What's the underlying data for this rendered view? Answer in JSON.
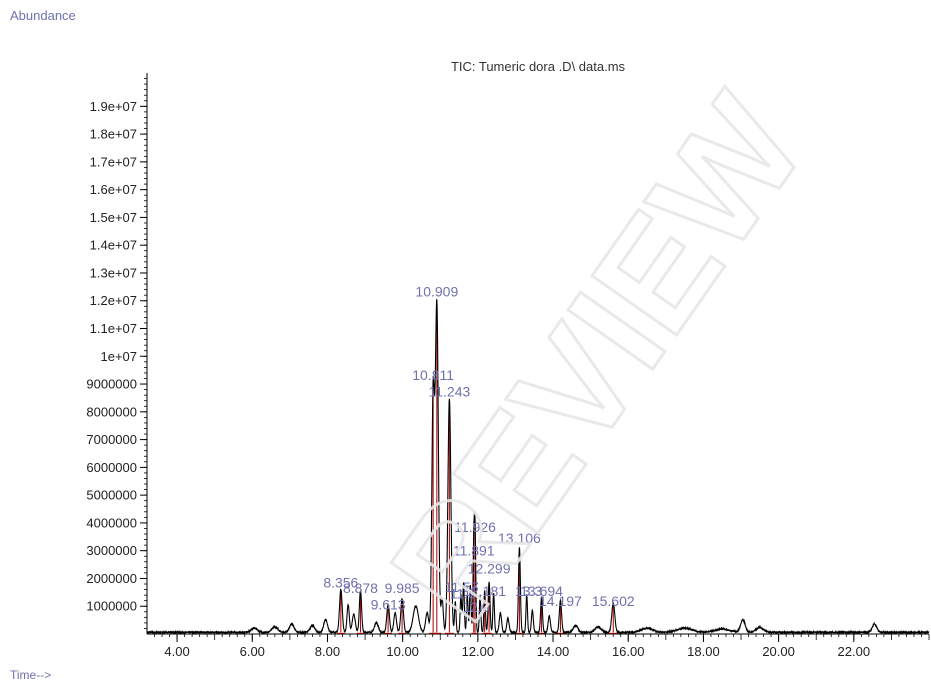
{
  "header": {
    "abundance_label": "Abundance",
    "time_label": "Time-->"
  },
  "chart_data": {
    "type": "line",
    "title": "TIC: Tumeric dora .D\\ data.ms",
    "xlabel": "Time-->",
    "ylabel": "Abundance",
    "xlim": [
      3.2,
      24.0
    ],
    "ylim": [
      0,
      20200000
    ],
    "x_ticks": [
      4,
      6,
      8,
      10,
      12,
      14,
      16,
      18,
      20,
      22
    ],
    "x_tick_labels": [
      "4.00",
      "6.00",
      "8.00",
      "10.00",
      "12.00",
      "14.00",
      "16.00",
      "18.00",
      "20.00",
      "22.00"
    ],
    "y_ticks": [
      1000000,
      2000000,
      3000000,
      4000000,
      5000000,
      6000000,
      7000000,
      8000000,
      9000000,
      10000000,
      11000000,
      12000000,
      13000000,
      14000000,
      15000000,
      16000000,
      17000000,
      18000000,
      19000000
    ],
    "y_tick_labels": [
      "1000000",
      "2000000",
      "3000000",
      "4000000",
      "5000000",
      "6000000",
      "7000000",
      "8000000",
      "9000000",
      "1e+07",
      "1.1e+07",
      "1.2e+07",
      "1.3e+07",
      "1.4e+07",
      "1.5e+07",
      "1.6e+07",
      "1.7e+07",
      "1.8e+07",
      "1.9e+07"
    ],
    "series_color": "#000000",
    "integration_color": "#aa0000",
    "label_color": "#7070b0",
    "baseline": 60000,
    "peaks": [
      {
        "rt": 6.05,
        "h": 150000,
        "w": 0.08
      },
      {
        "rt": 6.6,
        "h": 200000,
        "w": 0.08
      },
      {
        "rt": 7.05,
        "h": 300000,
        "w": 0.06
      },
      {
        "rt": 7.6,
        "h": 250000,
        "w": 0.06
      },
      {
        "rt": 7.95,
        "h": 450000,
        "w": 0.05
      },
      {
        "rt": 8.356,
        "h": 1550000,
        "w": 0.035
      },
      {
        "rt": 8.55,
        "h": 1000000,
        "w": 0.03
      },
      {
        "rt": 8.7,
        "h": 650000,
        "w": 0.04
      },
      {
        "rt": 8.878,
        "h": 1500000,
        "w": 0.03
      },
      {
        "rt": 9.3,
        "h": 350000,
        "w": 0.05
      },
      {
        "rt": 9.613,
        "h": 1000000,
        "w": 0.035
      },
      {
        "rt": 9.8,
        "h": 700000,
        "w": 0.035
      },
      {
        "rt": 9.985,
        "h": 1200000,
        "w": 0.035
      },
      {
        "rt": 10.35,
        "h": 950000,
        "w": 0.07
      },
      {
        "rt": 10.65,
        "h": 700000,
        "w": 0.04
      },
      {
        "rt": 10.811,
        "h": 8500000,
        "w": 0.035
      },
      {
        "rt": 10.909,
        "h": 11800000,
        "w": 0.04
      },
      {
        "rt": 11.05,
        "h": 1200000,
        "w": 0.03
      },
      {
        "rt": 11.243,
        "h": 8400000,
        "w": 0.04
      },
      {
        "rt": 11.4,
        "h": 1100000,
        "w": 0.02
      },
      {
        "rt": 11.55,
        "h": 1350000,
        "w": 0.02
      },
      {
        "rt": 11.62,
        "h": 1800000,
        "w": 0.02
      },
      {
        "rt": 11.72,
        "h": 1350000,
        "w": 0.02
      },
      {
        "rt": 11.8,
        "h": 1700000,
        "w": 0.02
      },
      {
        "rt": 11.891,
        "h": 2900000,
        "w": 0.02
      },
      {
        "rt": 11.926,
        "h": 3400000,
        "w": 0.02
      },
      {
        "rt": 12.06,
        "h": 1300000,
        "w": 0.02
      },
      {
        "rt": 12.181,
        "h": 1500000,
        "w": 0.02
      },
      {
        "rt": 12.299,
        "h": 1800000,
        "w": 0.025
      },
      {
        "rt": 12.42,
        "h": 1400000,
        "w": 0.02
      },
      {
        "rt": 12.6,
        "h": 700000,
        "w": 0.03
      },
      {
        "rt": 12.8,
        "h": 500000,
        "w": 0.03
      },
      {
        "rt": 13.106,
        "h": 3050000,
        "w": 0.025
      },
      {
        "rt": 13.3,
        "h": 1350000,
        "w": 0.02
      },
      {
        "rt": 13.45,
        "h": 800000,
        "w": 0.025
      },
      {
        "rt": 13.694,
        "h": 1250000,
        "w": 0.025
      },
      {
        "rt": 13.9,
        "h": 600000,
        "w": 0.03
      },
      {
        "rt": 14.197,
        "h": 1150000,
        "w": 0.03
      },
      {
        "rt": 14.6,
        "h": 250000,
        "w": 0.06
      },
      {
        "rt": 15.2,
        "h": 200000,
        "w": 0.08
      },
      {
        "rt": 15.602,
        "h": 1050000,
        "w": 0.04
      },
      {
        "rt": 16.5,
        "h": 150000,
        "w": 0.15
      },
      {
        "rt": 17.5,
        "h": 150000,
        "w": 0.2
      },
      {
        "rt": 18.5,
        "h": 120000,
        "w": 0.2
      },
      {
        "rt": 19.05,
        "h": 450000,
        "w": 0.06
      },
      {
        "rt": 19.5,
        "h": 180000,
        "w": 0.1
      },
      {
        "rt": 22.55,
        "h": 300000,
        "w": 0.06
      }
    ],
    "integrated_peaks": [
      8.356,
      8.878,
      9.613,
      9.985,
      10.811,
      10.909,
      11.243,
      11.891,
      11.926,
      12.181,
      12.299,
      13.106,
      13.694,
      14.197,
      15.602
    ],
    "annotations": [
      {
        "text": "10.909",
        "rt": 10.909,
        "y": 12150000
      },
      {
        "text": "10.811",
        "rt": 10.811,
        "y": 9150000
      },
      {
        "text": "11.243",
        "rt": 11.243,
        "y": 8550000
      },
      {
        "text": "11.926",
        "rt": 11.926,
        "y": 3680000
      },
      {
        "text": "11.891",
        "rt": 11.891,
        "y": 2830000
      },
      {
        "text": "13.106",
        "rt": 13.106,
        "y": 3270000
      },
      {
        "text": "12.299",
        "rt": 12.299,
        "y": 2180000
      },
      {
        "text": "11.57",
        "rt": 11.57,
        "y": 1520000
      },
      {
        "text": "12.181",
        "rt": 12.181,
        "y": 1360000
      },
      {
        "text": "11.6",
        "rt": 11.6,
        "y": 1270000
      },
      {
        "text": "12.0",
        "rt": 11.95,
        "y": 800000
      },
      {
        "text": "13.3",
        "rt": 13.35,
        "y": 1360000
      },
      {
        "text": "13.694",
        "rt": 13.694,
        "y": 1360000
      },
      {
        "text": "8.356",
        "rt": 8.356,
        "y": 1670000
      },
      {
        "text": "8.878",
        "rt": 8.878,
        "y": 1470000
      },
      {
        "text": "9.985",
        "rt": 9.985,
        "y": 1470000
      },
      {
        "text": "9.613",
        "rt": 9.613,
        "y": 890000
      },
      {
        "text": "14.197",
        "rt": 14.197,
        "y": 1000000
      },
      {
        "text": "15.602",
        "rt": 15.602,
        "y": 1000000
      }
    ],
    "grid": false,
    "legend": "none"
  }
}
